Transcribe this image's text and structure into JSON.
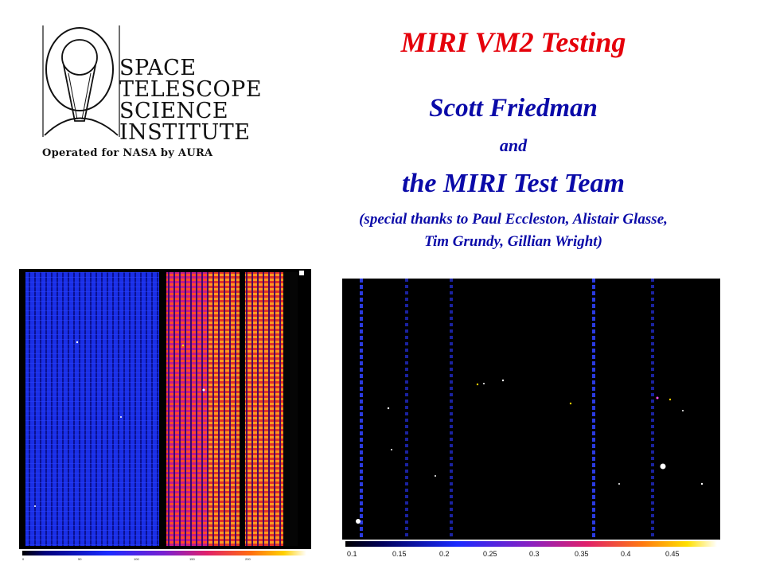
{
  "logo": {
    "lines": [
      "SPACE",
      "TELESCOPE",
      "SCIENCE",
      "INSTITUTE"
    ],
    "tagline": "Operated for NASA by AURA"
  },
  "title": "MIRI VM2 Testing",
  "author": "Scott Friedman",
  "conjunction": "and",
  "team": "the MIRI Test Team",
  "thanks_line1": "(special thanks to Paul Eccleston, Alistair Glasse,",
  "thanks_line2": "Tim Grundy, Gillian Wright)",
  "images": {
    "left": {
      "colorbar_ticks": [
        "0",
        "50",
        "100",
        "150",
        "200"
      ]
    },
    "right": {
      "colorbar_ticks": [
        "0.1",
        "0.15",
        "0.2",
        "0.25",
        "0.3",
        "0.35",
        "0.4",
        "0.45"
      ]
    }
  }
}
